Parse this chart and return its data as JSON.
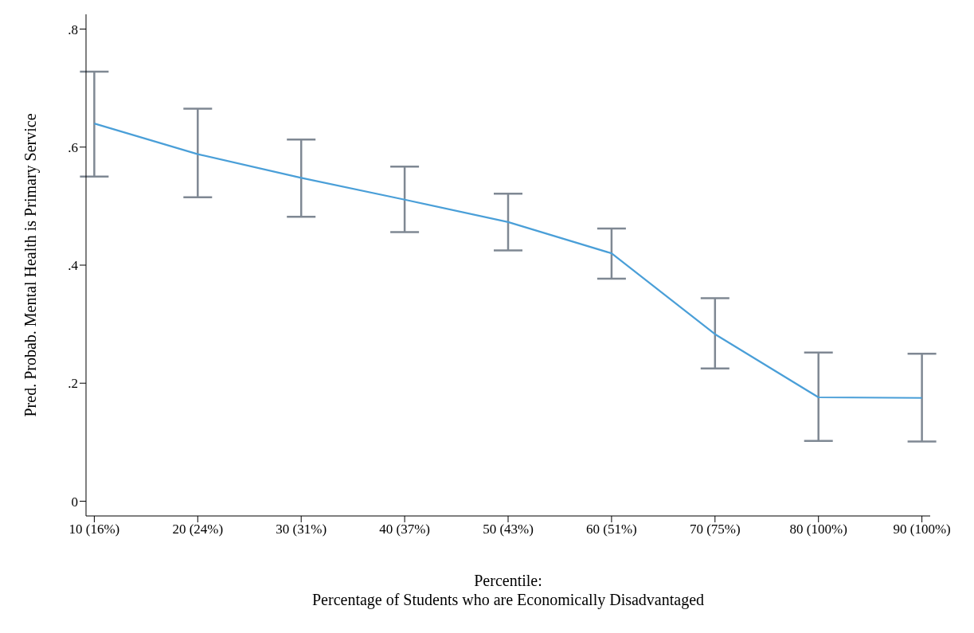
{
  "chart_data": {
    "type": "line",
    "xlabel": "Percentile:\nPercentage of Students who are Economically Disadvantaged",
    "ylabel": "Pred. Probab. Mental Health is Primary Service",
    "categories": [
      "10 (16%)",
      "20 (24%)",
      "30 (31%)",
      "40 (37%)",
      "50 (43%)",
      "60 (51%)",
      "70 (75%)",
      "80 (100%)",
      "90 (100%)"
    ],
    "series": [
      {
        "color": "#4a9fd8",
        "values": [
          0.64,
          0.588,
          0.548,
          0.511,
          0.473,
          0.42,
          0.283,
          0.176,
          0.175
        ],
        "errors": [
          [
            0.55,
            0.728
          ],
          [
            0.515,
            0.665
          ],
          [
            0.482,
            0.613
          ],
          [
            0.456,
            0.567
          ],
          [
            0.425,
            0.521
          ],
          [
            0.377,
            0.462
          ],
          [
            0.225,
            0.344
          ],
          [
            0.102,
            0.252
          ],
          [
            0.101,
            0.25
          ]
        ]
      }
    ],
    "ylim": [
      -0.025,
      0.825
    ],
    "yticks": [
      0,
      {
        "value": 0.2,
        "label": ".2"
      },
      {
        "value": 0.4,
        "label": ".4"
      },
      {
        "value": 0.6,
        "label": ".6"
      },
      {
        "value": 0.8,
        "label": ".8"
      }
    ],
    "grid": false,
    "legend": false,
    "marker": "none",
    "line_style": "solid"
  }
}
